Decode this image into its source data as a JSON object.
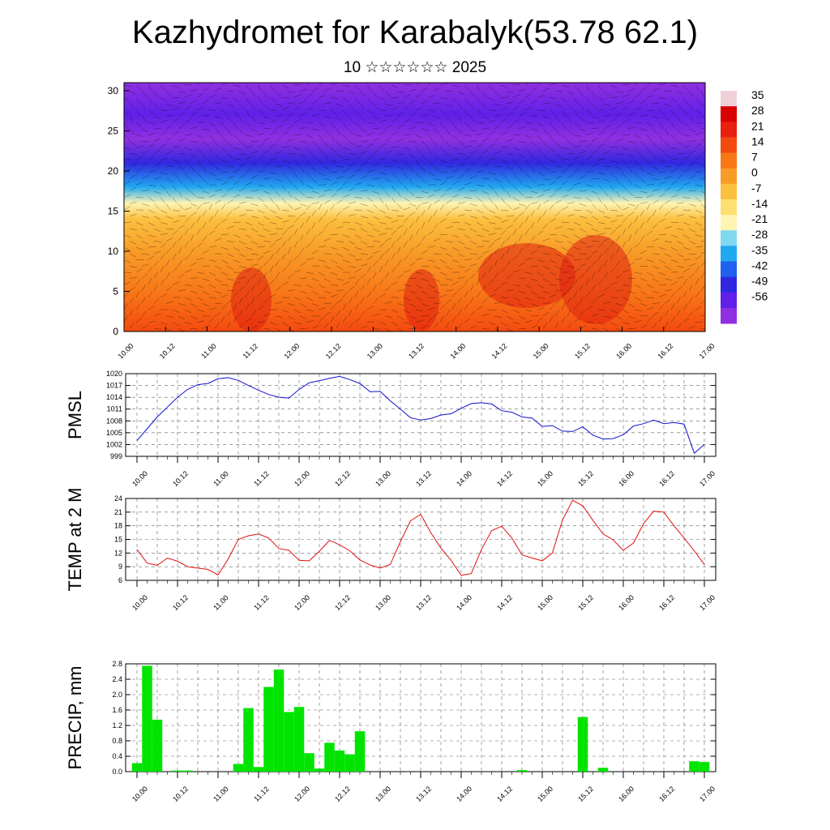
{
  "title": "Kazhydromet for Karabalyk(53.78 62.1)",
  "subtitle": "10 ☆☆☆☆☆☆ 2025",
  "colors": {
    "pmsl_line": "#1010d0",
    "temp_line": "#e01010",
    "precip_bar": "#00e400",
    "axis": "#000000"
  },
  "chart_data": [
    {
      "type": "heatmap",
      "ylim": [
        0,
        31
      ],
      "y_ticks": [
        "0",
        "5",
        "10",
        "15",
        "20",
        "25",
        "30"
      ],
      "y_tick_values": [
        0,
        5,
        10,
        15,
        20,
        25,
        30
      ],
      "x_ticks": [
        "10.00",
        "10.12",
        "11.00",
        "11.12",
        "12.00",
        "12.12",
        "13.00",
        "13.12",
        "14.00",
        "14.12",
        "15.00",
        "15.12",
        "16.00",
        "16.12",
        "17.00"
      ],
      "colorbar_labels": [
        "35",
        "28",
        "21",
        "14",
        "7",
        "0",
        "-7",
        "-14",
        "-21",
        "-28",
        "-35",
        "-42",
        "-49",
        "-56"
      ],
      "colorbar_colors": [
        "#f0d0d8",
        "#d80000",
        "#e82010",
        "#f44a10",
        "#f87818",
        "#f89c28",
        "#fcc040",
        "#fde070",
        "#fff4b4",
        "#80d8f0",
        "#20a8f0",
        "#2060f0",
        "#3028e0",
        "#6020e8",
        "#9030e0"
      ],
      "profile": [
        {
          "alt": 0,
          "t": 14
        },
        {
          "alt": 5,
          "t": 11
        },
        {
          "alt": 10,
          "t": 4
        },
        {
          "alt": 14,
          "t": -6
        },
        {
          "alt": 16,
          "t": -16
        },
        {
          "alt": 18,
          "t": -28
        },
        {
          "alt": 21,
          "t": -44
        },
        {
          "alt": 24,
          "t": -54
        },
        {
          "alt": 27,
          "t": -52
        },
        {
          "alt": 31,
          "t": -56
        }
      ]
    },
    {
      "type": "line",
      "ylabel": "PMSL",
      "ylim": [
        999,
        1020
      ],
      "y_ticks": [
        "1020",
        "1017",
        "1014",
        "1011",
        "1008",
        "1005",
        "1002",
        "999"
      ],
      "y_tick_values": [
        1020,
        1017,
        1014,
        1011,
        1008,
        1005,
        1002,
        999
      ],
      "x_ticks": [
        "10.00",
        "10.12",
        "11.00",
        "11.12",
        "12.00",
        "12.12",
        "13.00",
        "13.12",
        "14.00",
        "14.12",
        "15.00",
        "15.12",
        "16.00",
        "16.12",
        "17.00"
      ],
      "x_hours": [
        0,
        3,
        6,
        9,
        12,
        15,
        18,
        21,
        24,
        27,
        30,
        33,
        36,
        39,
        42,
        45,
        48,
        51,
        54,
        57,
        60,
        63,
        66,
        69,
        72,
        75,
        78,
        81,
        84,
        87,
        90,
        93,
        96,
        99,
        102,
        105,
        108,
        111,
        114,
        117,
        120,
        123,
        126,
        129,
        132,
        135,
        138,
        141,
        144,
        147,
        150,
        153,
        156,
        159,
        162,
        165,
        168
      ],
      "values": [
        1003,
        1006,
        1009,
        1011.5,
        1014,
        1016,
        1017.2,
        1017.5,
        1018.7,
        1019,
        1018.3,
        1017,
        1015.8,
        1014.7,
        1014,
        1013.8,
        1016,
        1017.7,
        1018.2,
        1018.8,
        1019.3,
        1018.5,
        1017.5,
        1015.4,
        1015.5,
        1013.1,
        1011,
        1008.8,
        1008.2,
        1008.6,
        1009.5,
        1009.8,
        1011.2,
        1012.4,
        1012.6,
        1012.3,
        1010.6,
        1010.2,
        1009,
        1008.7,
        1006.6,
        1006.8,
        1005.4,
        1005.3,
        1006.5,
        1004.4,
        1003.4,
        1003.5,
        1004.5,
        1006.7,
        1007.3,
        1008.2,
        1007.3,
        1007.6,
        1007.2,
        999.8,
        1002
      ]
    },
    {
      "type": "line",
      "ylabel": "TEMP at 2 M",
      "ylim": [
        6,
        24
      ],
      "y_ticks": [
        "24",
        "21",
        "18",
        "15",
        "12",
        "9",
        "6"
      ],
      "y_tick_values": [
        24,
        21,
        18,
        15,
        12,
        9,
        6
      ],
      "x_ticks": [
        "10.00",
        "10.12",
        "11.00",
        "11.12",
        "12.00",
        "12.12",
        "13.00",
        "13.12",
        "14.00",
        "14.12",
        "15.00",
        "15.12",
        "16.00",
        "16.12",
        "17.00"
      ],
      "x_hours": [
        0,
        3,
        6,
        9,
        12,
        15,
        18,
        21,
        24,
        27,
        30,
        33,
        36,
        39,
        42,
        45,
        48,
        51,
        54,
        57,
        60,
        63,
        66,
        69,
        72,
        75,
        78,
        81,
        84,
        87,
        90,
        93,
        96,
        99,
        102,
        105,
        108,
        111,
        114,
        117,
        120,
        123,
        126,
        129,
        132,
        135,
        138,
        141,
        144,
        147,
        150,
        153,
        156,
        159,
        162,
        165,
        168
      ],
      "values": [
        12.8,
        9.8,
        9.3,
        10.9,
        10.2,
        9,
        8.7,
        8.4,
        7.2,
        10.7,
        15,
        15.8,
        16.2,
        15.3,
        13,
        12.6,
        10.4,
        10.3,
        12.4,
        14.8,
        13.8,
        12.5,
        10.5,
        9.4,
        8.7,
        9.5,
        14.5,
        19.1,
        20.5,
        16.5,
        13.1,
        10.4,
        7.1,
        7.5,
        12.8,
        16.9,
        17.9,
        15.3,
        11.6,
        10.9,
        10.3,
        12,
        19.3,
        23.6,
        22.4,
        19.2,
        16.2,
        14.9,
        12.6,
        14.2,
        18.5,
        21.2,
        21,
        18,
        15.3,
        12.5,
        9.5
      ]
    },
    {
      "type": "bar",
      "ylabel": "PRECIP, mm",
      "ylim": [
        0,
        2.8
      ],
      "y_ticks": [
        "2.8",
        "2.4",
        "2.0",
        "1.6",
        "1.2",
        "0.8",
        "0.4",
        "0.0"
      ],
      "y_tick_values": [
        2.8,
        2.4,
        2.0,
        1.6,
        1.2,
        0.8,
        0.4,
        0.0
      ],
      "x_ticks": [
        "10.00",
        "10.12",
        "11.00",
        "11.12",
        "12.00",
        "12.12",
        "13.00",
        "13.12",
        "14.00",
        "14.12",
        "15.00",
        "15.12",
        "16.00",
        "16.12",
        "17.00"
      ],
      "x_hours": [
        0,
        3,
        6,
        9,
        12,
        15,
        18,
        21,
        24,
        27,
        30,
        33,
        36,
        39,
        42,
        45,
        48,
        51,
        54,
        57,
        60,
        63,
        66,
        69,
        72,
        75,
        78,
        81,
        84,
        87,
        90,
        93,
        96,
        99,
        102,
        105,
        108,
        111,
        114,
        117,
        120,
        123,
        126,
        129,
        132,
        135,
        138,
        141,
        144,
        147,
        150,
        153,
        156,
        159,
        162,
        165,
        168
      ],
      "values": [
        0.22,
        2.75,
        1.35,
        0,
        0.03,
        0.03,
        0,
        0,
        0,
        0,
        0.2,
        1.65,
        0.12,
        2.2,
        2.65,
        1.55,
        1.68,
        0.48,
        0.08,
        0.75,
        0.55,
        0.45,
        1.05,
        0,
        0,
        0,
        0,
        0,
        0,
        0,
        0,
        0,
        0,
        0,
        0,
        0,
        0,
        0,
        0.04,
        0,
        0,
        0,
        0,
        0,
        1.42,
        0,
        0.1,
        0,
        0,
        0,
        0,
        0,
        0,
        0,
        0,
        0.27,
        0.25
      ]
    }
  ]
}
